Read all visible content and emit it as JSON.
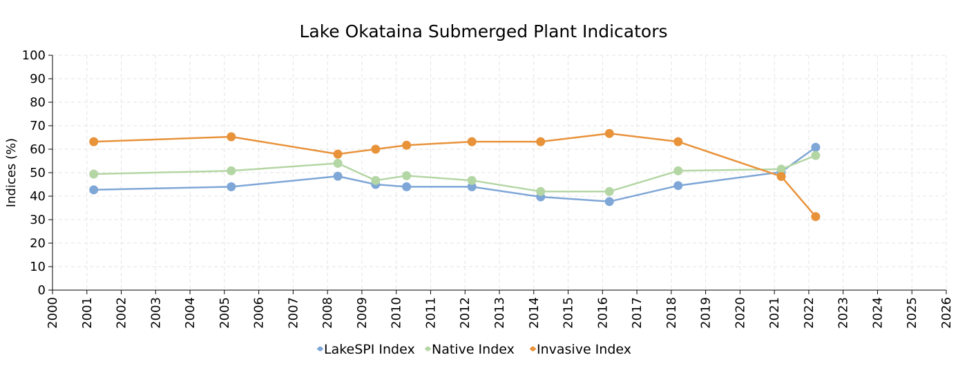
{
  "chart_data": {
    "type": "line",
    "title": "Lake Okataina Submerged Plant Indicators",
    "ylabel": "Indices (%)",
    "xlabel": "",
    "xlim": [
      2000,
      2026
    ],
    "ylim": [
      0,
      100
    ],
    "x_ticks": [
      "2000",
      "2001",
      "2002",
      "2003",
      "2004",
      "2005",
      "2006",
      "2007",
      "2008",
      "2009",
      "2010",
      "2011",
      "2012",
      "2013",
      "2014",
      "2015",
      "2016",
      "2017",
      "2018",
      "2019",
      "2020",
      "2021",
      "2022",
      "2023",
      "2024",
      "2025",
      "2026"
    ],
    "y_ticks": [
      "0",
      "10",
      "20",
      "30",
      "40",
      "50",
      "60",
      "70",
      "80",
      "90",
      "100"
    ],
    "grid": true,
    "legend_position": "bottom",
    "series": [
      {
        "name": "LakeSPI Index",
        "color": "#7ea6d6",
        "points": [
          {
            "x": 2001.2,
            "y": 42.7
          },
          {
            "x": 2005.2,
            "y": 44.0
          },
          {
            "x": 2008.3,
            "y": 48.5
          },
          {
            "x": 2009.4,
            "y": 45.0
          },
          {
            "x": 2010.3,
            "y": 44.0
          },
          {
            "x": 2012.2,
            "y": 44.0
          },
          {
            "x": 2014.2,
            "y": 39.7
          },
          {
            "x": 2016.2,
            "y": 37.7
          },
          {
            "x": 2018.2,
            "y": 44.5
          },
          {
            "x": 2021.2,
            "y": 50.3
          },
          {
            "x": 2022.2,
            "y": 60.8
          }
        ]
      },
      {
        "name": "Native Index",
        "color": "#b4d6a4",
        "points": [
          {
            "x": 2001.2,
            "y": 49.4
          },
          {
            "x": 2005.2,
            "y": 50.8
          },
          {
            "x": 2008.3,
            "y": 54.0
          },
          {
            "x": 2009.4,
            "y": 46.7
          },
          {
            "x": 2010.3,
            "y": 48.7
          },
          {
            "x": 2012.2,
            "y": 46.7
          },
          {
            "x": 2014.2,
            "y": 42.0
          },
          {
            "x": 2016.2,
            "y": 42.0
          },
          {
            "x": 2018.2,
            "y": 50.8
          },
          {
            "x": 2021.2,
            "y": 51.5
          },
          {
            "x": 2022.2,
            "y": 57.3
          }
        ]
      },
      {
        "name": "Invasive Index",
        "color": "#e8923a",
        "points": [
          {
            "x": 2001.2,
            "y": 63.2
          },
          {
            "x": 2005.2,
            "y": 65.3
          },
          {
            "x": 2008.3,
            "y": 57.9
          },
          {
            "x": 2009.4,
            "y": 60.0
          },
          {
            "x": 2010.3,
            "y": 61.7
          },
          {
            "x": 2012.2,
            "y": 63.2
          },
          {
            "x": 2014.2,
            "y": 63.2
          },
          {
            "x": 2016.2,
            "y": 66.7
          },
          {
            "x": 2018.2,
            "y": 63.2
          },
          {
            "x": 2021.2,
            "y": 48.4
          },
          {
            "x": 2022.2,
            "y": 31.3
          }
        ]
      }
    ]
  }
}
